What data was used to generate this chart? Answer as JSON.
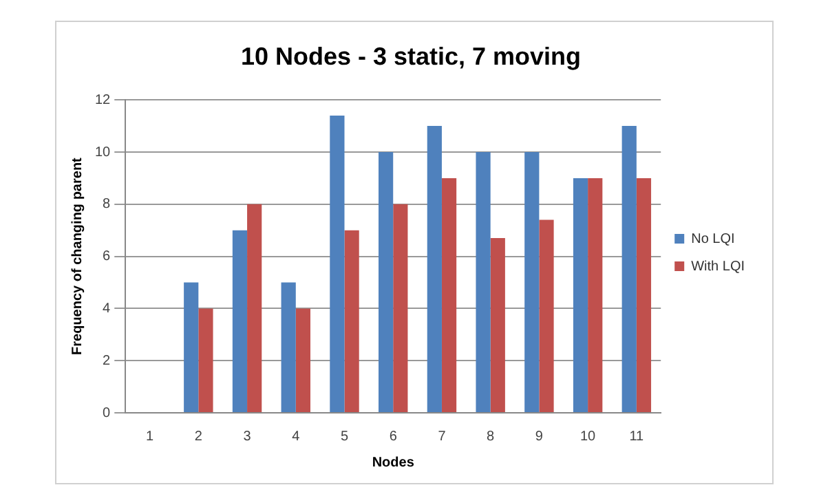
{
  "chart_data": {
    "type": "bar",
    "title": "10 Nodes - 3 static, 7 moving",
    "xlabel": "Nodes",
    "ylabel": "Frequency of changing parent",
    "categories": [
      "1",
      "2",
      "3",
      "4",
      "5",
      "6",
      "7",
      "8",
      "9",
      "10",
      "11"
    ],
    "series": [
      {
        "name": "No LQI",
        "color": "#4f81bd",
        "values": [
          0,
          5,
          7,
          5,
          11.4,
          10,
          11,
          10,
          10,
          9,
          11
        ]
      },
      {
        "name": "With LQI",
        "color": "#c0504d",
        "values": [
          0,
          4,
          8,
          4,
          7,
          8,
          9,
          6.7,
          7.4,
          9,
          9
        ]
      }
    ],
    "ylim": [
      0,
      12
    ],
    "yticks": [
      0,
      2,
      4,
      6,
      8,
      10,
      12
    ],
    "grid": "y",
    "legend": "right"
  }
}
